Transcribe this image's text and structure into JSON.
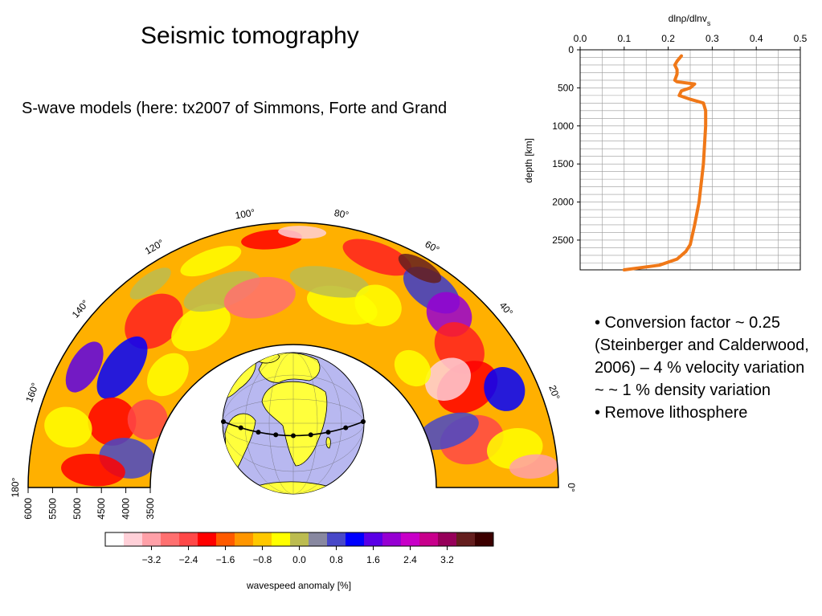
{
  "slide": {
    "title": "Seismic tomography",
    "subtitle": "S-wave models (here: tx2007 of Simmons, Forte and Grand",
    "bullets": [
      "• Conversion factor ~ 0.25 (Steinberger and Calderwood, 2006) – 4 % velocity variation ~ ~ 1 % density variation",
      "• Remove lithosphere"
    ]
  },
  "cross_section": {
    "angle_labels": [
      "0°",
      "20°",
      "40°",
      "60°",
      "80°",
      "100°",
      "120°",
      "140°",
      "160°",
      "180°"
    ],
    "radius_labels": [
      "6000",
      "5500",
      "5000",
      "4500",
      "4000",
      "3500"
    ],
    "colorbar": {
      "ticks": [
        "−3.2",
        "−2.4",
        "−1.6",
        "−0.8",
        "0.0",
        "0.8",
        "1.6",
        "2.4",
        "3.2"
      ],
      "label": "wavespeed anomaly [%]",
      "colors": [
        "#ffffff",
        "#ffd0d8",
        "#ffa0a8",
        "#ff7070",
        "#ff4848",
        "#ff0000",
        "#ff5a00",
        "#ff9600",
        "#ffc800",
        "#ffff00",
        "#bcbc50",
        "#8888a0",
        "#4848c8",
        "#0000ff",
        "#5a00e6",
        "#9600d2",
        "#c800c8",
        "#c8008c",
        "#96005a",
        "#641e1e",
        "#3c0000"
      ]
    },
    "colors": {
      "globe_ocean": "#b8b8f0",
      "globe_land": "#ffff3c"
    }
  },
  "chart_data": {
    "type": "line",
    "title": "",
    "xlabel": "dlnρ/dlnv",
    "xlabel_sub": "s",
    "ylabel": "depth [km]",
    "xlim": [
      0,
      0.5
    ],
    "ylim": [
      2891,
      0
    ],
    "x_ticks": [
      "0.0",
      "0.1",
      "0.2",
      "0.3",
      "0.4",
      "0.5"
    ],
    "y_ticks": [
      "0",
      "500",
      "1000",
      "1500",
      "2000",
      "2500"
    ],
    "grid": true,
    "series_color": "#f07818",
    "x": [
      0.23,
      0.22,
      0.215,
      0.22,
      0.22,
      0.215,
      0.22,
      0.26,
      0.25,
      0.23,
      0.225,
      0.25,
      0.28,
      0.285,
      0.285,
      0.28,
      0.27,
      0.26,
      0.25,
      0.24,
      0.22,
      0.18,
      0.1
    ],
    "y": [
      80,
      150,
      200,
      260,
      320,
      400,
      420,
      450,
      500,
      540,
      600,
      650,
      700,
      800,
      1000,
      1500,
      2000,
      2300,
      2560,
      2650,
      2750,
      2830,
      2891
    ]
  }
}
